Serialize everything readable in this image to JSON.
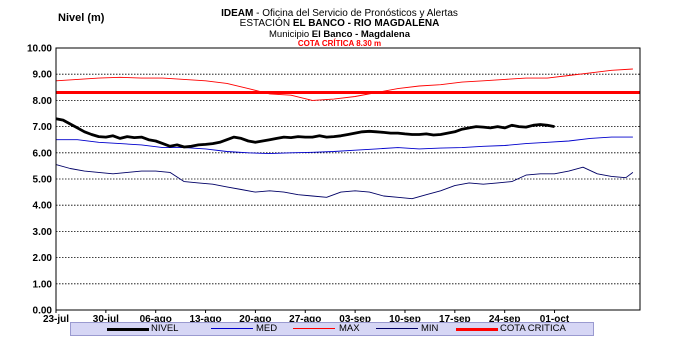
{
  "header": {
    "org_bold": "IDEAM",
    "org_rest": " - Oficina del Servicio de Pronósticos y Alertas",
    "station_prefix": "ESTACIÓN ",
    "station_bold": "EL BANCO - RIO MAGDALENA",
    "municipio_prefix": "Municipio ",
    "municipio_bold": "El Banco - Magdalena",
    "cota_critica": "COTA CRÍTICA 8.30 m"
  },
  "colors": {
    "nivel": "#000000",
    "med": "#0000cc",
    "max": "#ff0000",
    "min": "#000066",
    "cota": "#ff0000"
  },
  "chart_data": {
    "type": "line",
    "ylabel": "Nivel (m)",
    "ylim": [
      0,
      10
    ],
    "yticks": [
      "0.00",
      "1.00",
      "2.00",
      "3.00",
      "4.00",
      "5.00",
      "6.00",
      "7.00",
      "8.00",
      "9.00",
      "10.00"
    ],
    "grid": true,
    "x_start": "23-jul",
    "xticks": [
      "23-jul",
      "30-jul",
      "06-ago",
      "13-ago",
      "20-ago",
      "27-ago",
      "03-sep",
      "10-sep",
      "17-sep",
      "24-sep",
      "01-oct"
    ],
    "x_days": 82,
    "cota_critica": 8.3,
    "series": [
      {
        "name": "NIVEL",
        "x": [
          0,
          1,
          2,
          3,
          4,
          5,
          6,
          7,
          8,
          9,
          10,
          11,
          12,
          13,
          14,
          15,
          16,
          17,
          18,
          19,
          20,
          21,
          22,
          23,
          24,
          25,
          26,
          27,
          28,
          29,
          30,
          31,
          32,
          33,
          34,
          35,
          36,
          37,
          38,
          39,
          40,
          41,
          42,
          43,
          44,
          45,
          46,
          47,
          48,
          49,
          50,
          51,
          52,
          53,
          54,
          55,
          56,
          57,
          58,
          59,
          60,
          61,
          62,
          63,
          64,
          65,
          66,
          67,
          68,
          69,
          70
        ],
        "y": [
          7.3,
          7.25,
          7.1,
          6.95,
          6.8,
          6.7,
          6.62,
          6.6,
          6.65,
          6.55,
          6.62,
          6.58,
          6.6,
          6.5,
          6.45,
          6.35,
          6.25,
          6.3,
          6.22,
          6.25,
          6.3,
          6.32,
          6.35,
          6.4,
          6.5,
          6.6,
          6.55,
          6.45,
          6.4,
          6.45,
          6.5,
          6.55,
          6.6,
          6.58,
          6.62,
          6.6,
          6.6,
          6.65,
          6.6,
          6.62,
          6.65,
          6.7,
          6.75,
          6.8,
          6.82,
          6.8,
          6.78,
          6.75,
          6.75,
          6.72,
          6.7,
          6.7,
          6.72,
          6.68,
          6.7,
          6.75,
          6.8,
          6.9,
          6.95,
          7.0,
          6.98,
          6.95,
          7.0,
          6.95,
          7.05,
          7.0,
          6.98,
          7.05,
          7.08,
          7.05,
          7.0
        ]
      },
      {
        "name": "MED",
        "x": [
          0,
          3,
          6,
          9,
          12,
          15,
          18,
          21,
          24,
          27,
          30,
          33,
          36,
          39,
          42,
          45,
          48,
          51,
          54,
          57,
          60,
          63,
          66,
          69,
          72,
          75,
          78,
          81
        ],
        "y": [
          6.5,
          6.5,
          6.4,
          6.35,
          6.3,
          6.2,
          6.2,
          6.15,
          6.05,
          6.0,
          5.97,
          6.0,
          6.02,
          6.05,
          6.1,
          6.15,
          6.2,
          6.15,
          6.18,
          6.2,
          6.25,
          6.28,
          6.35,
          6.4,
          6.45,
          6.55,
          6.6,
          6.6
        ]
      },
      {
        "name": "MAX",
        "x": [
          0,
          3,
          6,
          9,
          12,
          15,
          18,
          21,
          24,
          27,
          30,
          33,
          36,
          39,
          42,
          45,
          48,
          51,
          54,
          57,
          60,
          63,
          66,
          69,
          72,
          75,
          78,
          81
        ],
        "y": [
          8.75,
          8.8,
          8.85,
          8.88,
          8.85,
          8.85,
          8.8,
          8.75,
          8.65,
          8.45,
          8.25,
          8.2,
          8.0,
          8.05,
          8.15,
          8.3,
          8.45,
          8.55,
          8.6,
          8.7,
          8.75,
          8.8,
          8.85,
          8.85,
          8.95,
          9.05,
          9.15,
          9.2
        ]
      },
      {
        "name": "MIN",
        "x": [
          0,
          2,
          4,
          6,
          8,
          10,
          12,
          14,
          16,
          18,
          20,
          22,
          24,
          26,
          28,
          30,
          32,
          34,
          36,
          38,
          40,
          42,
          44,
          46,
          48,
          50,
          52,
          54,
          56,
          58,
          60,
          62,
          64,
          66,
          68,
          70,
          72,
          74,
          76,
          78,
          80,
          81
        ],
        "y": [
          5.55,
          5.4,
          5.3,
          5.25,
          5.2,
          5.25,
          5.3,
          5.3,
          5.25,
          4.9,
          4.85,
          4.8,
          4.7,
          4.6,
          4.5,
          4.55,
          4.5,
          4.4,
          4.35,
          4.3,
          4.5,
          4.55,
          4.5,
          4.35,
          4.3,
          4.25,
          4.4,
          4.55,
          4.75,
          4.85,
          4.8,
          4.85,
          4.9,
          5.15,
          5.2,
          5.2,
          5.3,
          5.45,
          5.2,
          5.1,
          5.05,
          5.25
        ]
      }
    ],
    "legend": [
      "NIVEL",
      "MED",
      "MAX",
      "MIN",
      "COTA CRITICA"
    ],
    "legend_position": "bottom"
  }
}
